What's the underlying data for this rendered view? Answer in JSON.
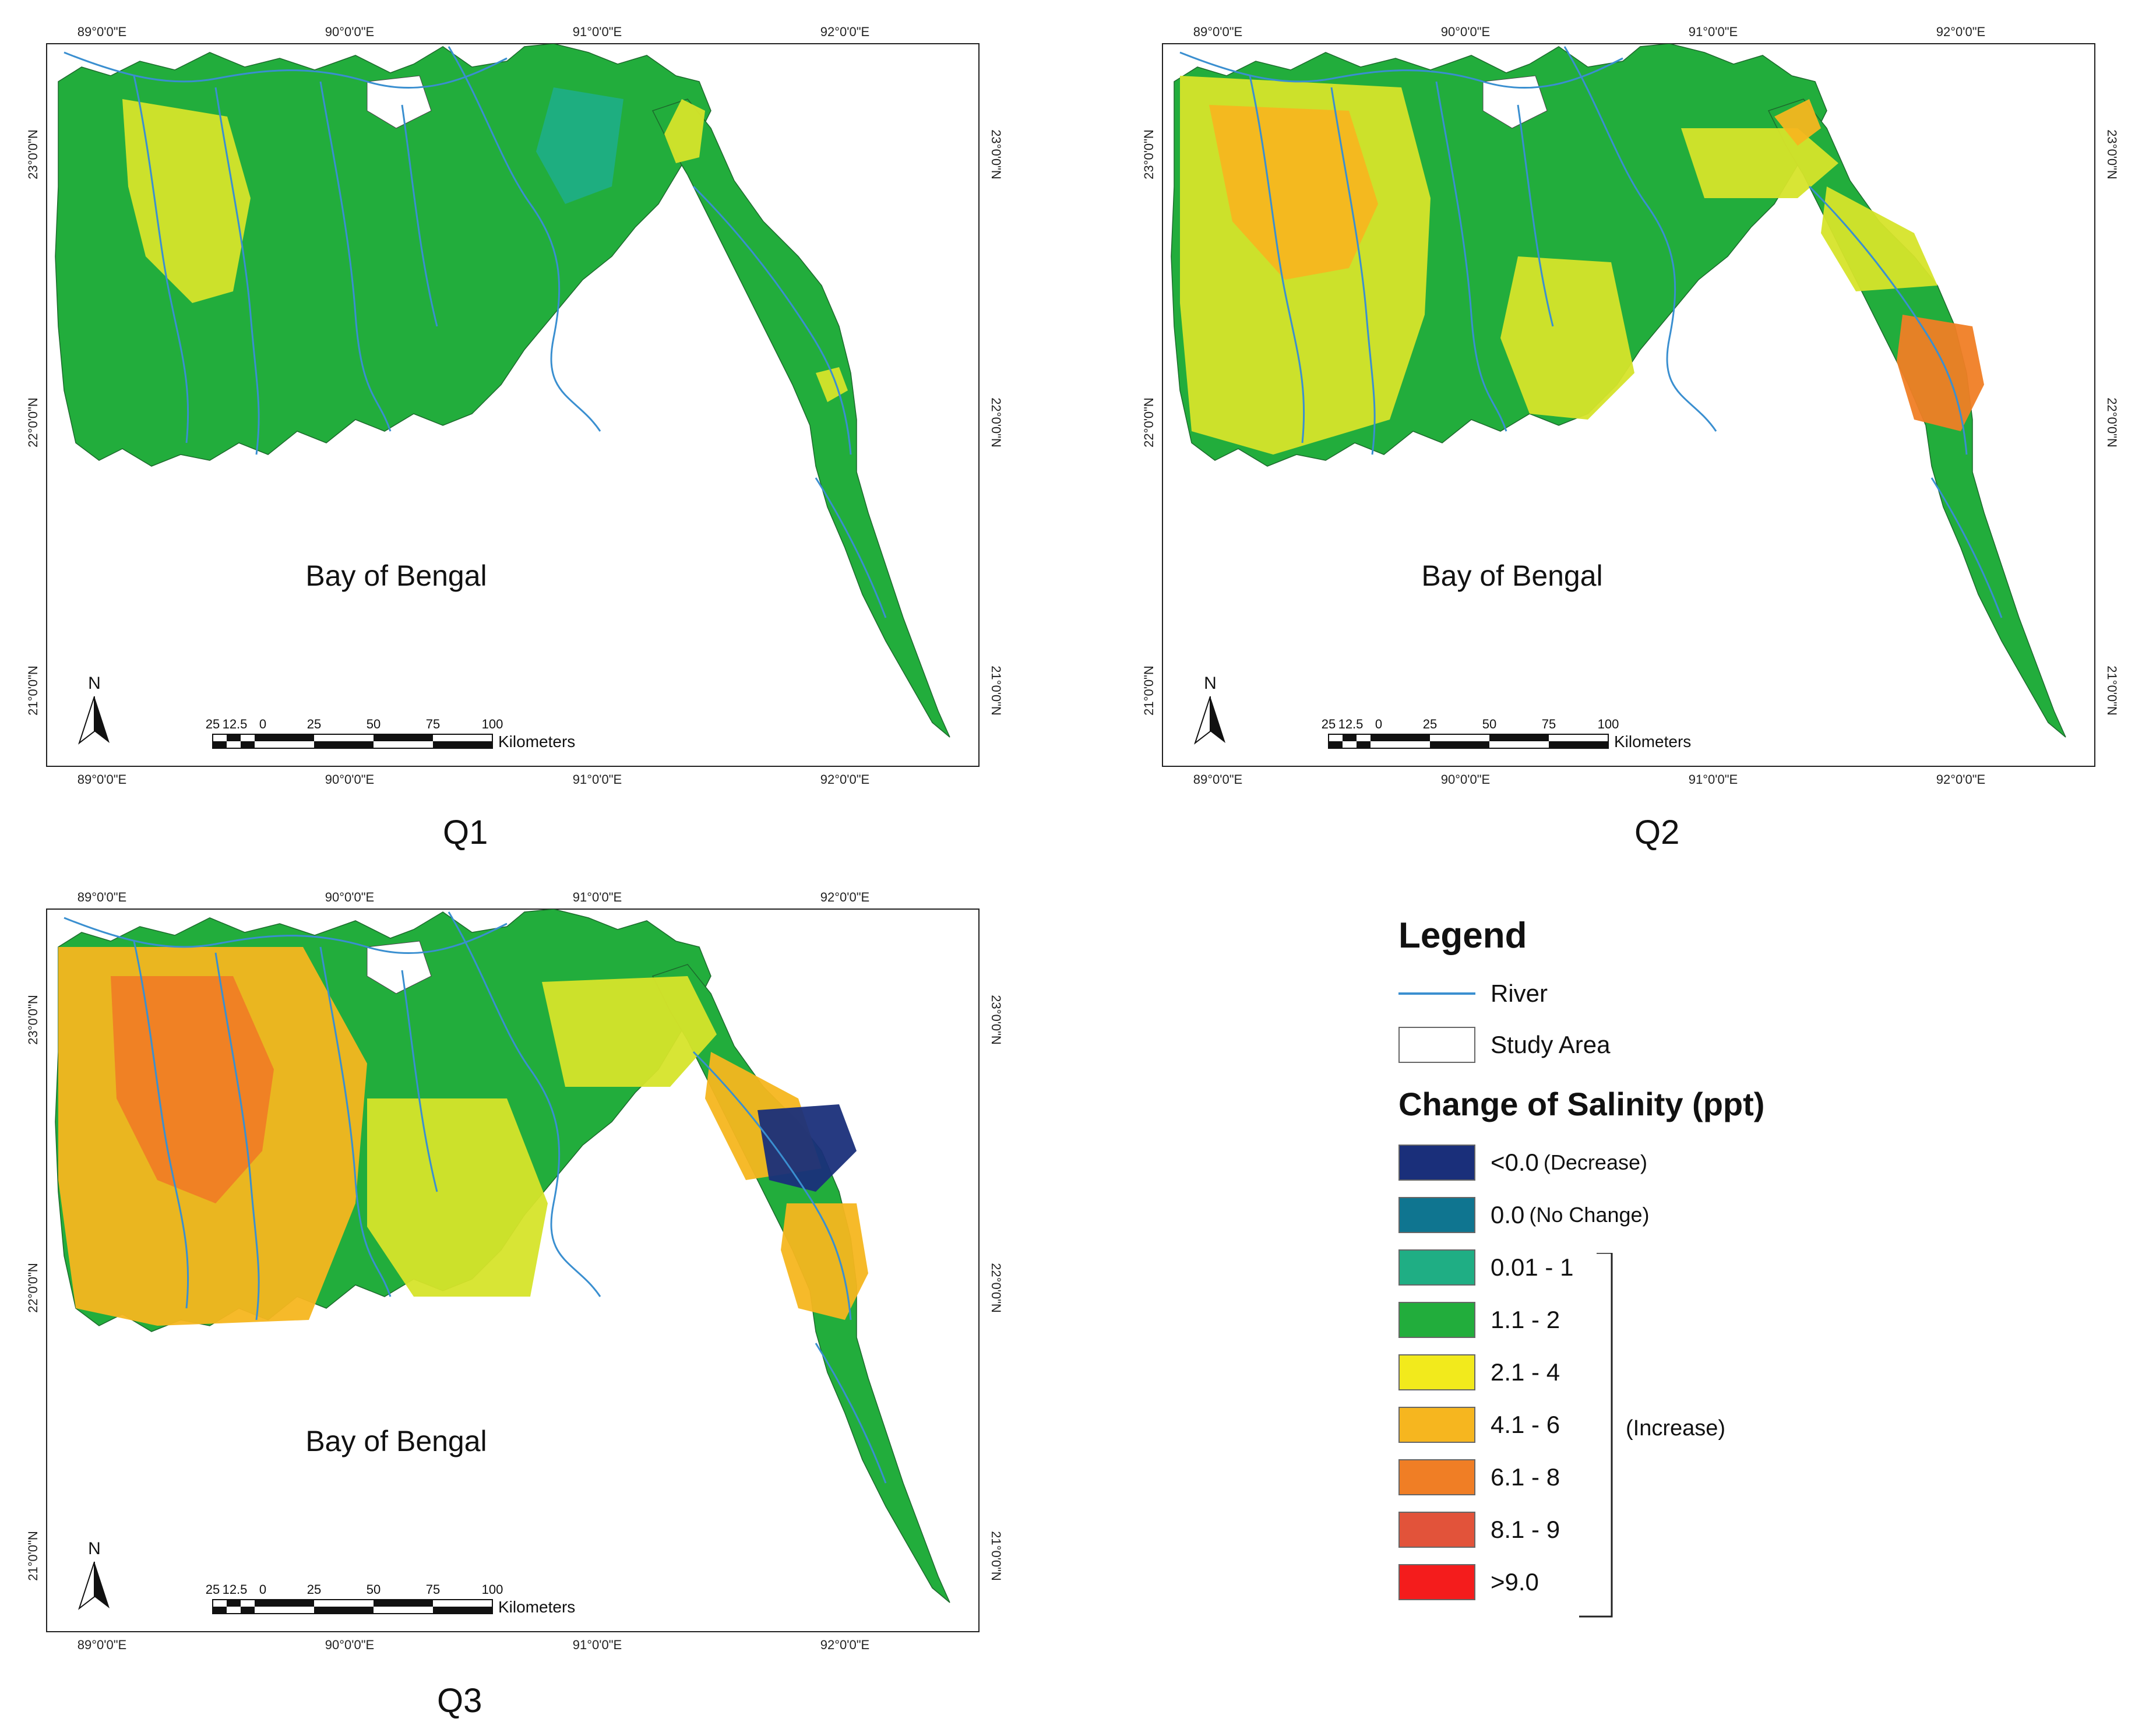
{
  "panels": [
    {
      "id": "Q1",
      "caption": "Q1"
    },
    {
      "id": "Q2",
      "caption": "Q2"
    },
    {
      "id": "Q3",
      "caption": "Q3"
    }
  ],
  "map": {
    "lon_labels": [
      "89°0'0\"E",
      "90°0'0\"E",
      "91°0'0\"E",
      "92°0'0\"E"
    ],
    "lat_labels": [
      "23°0'0\"N",
      "22°0'0\"N",
      "21°0'0\"N"
    ],
    "sea_label": "Bay of Bengal",
    "north_label": "N",
    "scale_ticks": [
      "25",
      "12.5",
      "0",
      "25",
      "50",
      "75",
      "100"
    ],
    "scale_unit": "Kilometers"
  },
  "legend": {
    "title": "Legend",
    "river_label": "River",
    "study_area_label": "Study Area",
    "salinity_title": "Change of Salinity (ppt)",
    "classes": [
      {
        "label": "<0.0",
        "note": "(Decrease)",
        "color": "#1a2f7a"
      },
      {
        "label": "0.0",
        "note": "(No Change)",
        "color": "#0f7590"
      },
      {
        "label": "0.01 - 1",
        "note": "",
        "color": "#1fae84"
      },
      {
        "label": "1.1 - 2",
        "note": "",
        "color": "#22ad3c"
      },
      {
        "label": "2.1 - 4",
        "note": "",
        "color": "#f2ea1c"
      },
      {
        "label": "4.1 - 6",
        "note": "",
        "color": "#f6b61f"
      },
      {
        "label": "6.1 - 8",
        "note": "",
        "color": "#f07e25"
      },
      {
        "label": "8.1 - 9",
        "note": "",
        "color": "#e2533a"
      },
      {
        "label": ">9.0",
        "note": "",
        "color": "#f41c1c"
      }
    ],
    "bracket_label": "(Increase)"
  },
  "colors": {
    "river": "#3a8fd0",
    "land_1": "#22ad3c",
    "land_0": "#1fae84",
    "land_2": "#d6e42a",
    "land_4": "#f6b61f",
    "land_6": "#f07e25",
    "land_neg": "#1a2f7a"
  }
}
